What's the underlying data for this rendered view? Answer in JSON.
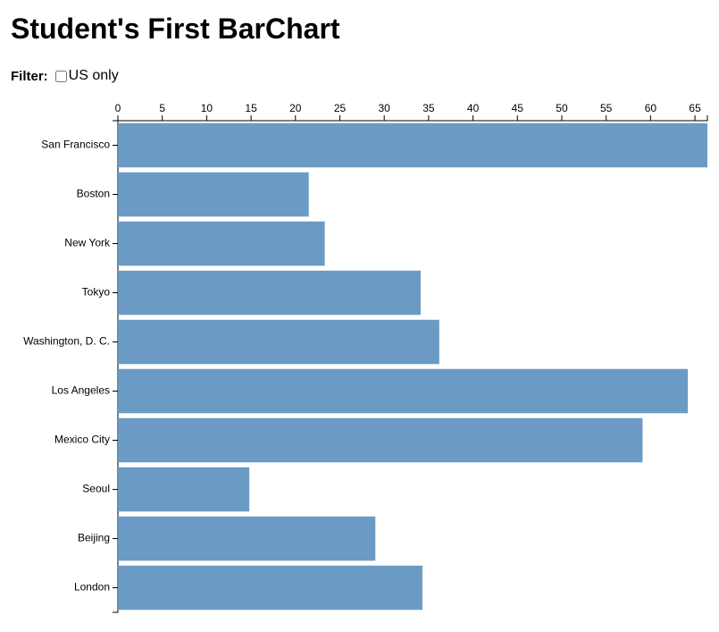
{
  "filter": {
    "label": "Filter:",
    "option": "US only"
  },
  "chart_data": {
    "type": "bar",
    "orientation": "horizontal",
    "title": "Student's First BarChart",
    "categories": [
      "San Francisco",
      "Boston",
      "New York",
      "Tokyo",
      "Washington, D. C.",
      "Los Angeles",
      "Mexico City",
      "Seoul",
      "Beijing",
      "London"
    ],
    "values": [
      66.4,
      21.5,
      23.3,
      34.1,
      36.2,
      64.2,
      59.1,
      14.8,
      29.0,
      34.3
    ],
    "color": "#6b9bc4",
    "xlim": [
      0,
      66.4
    ],
    "xticks": [
      0,
      5,
      10,
      15,
      20,
      25,
      30,
      35,
      40,
      45,
      50,
      55,
      60,
      65
    ],
    "grid": false
  }
}
